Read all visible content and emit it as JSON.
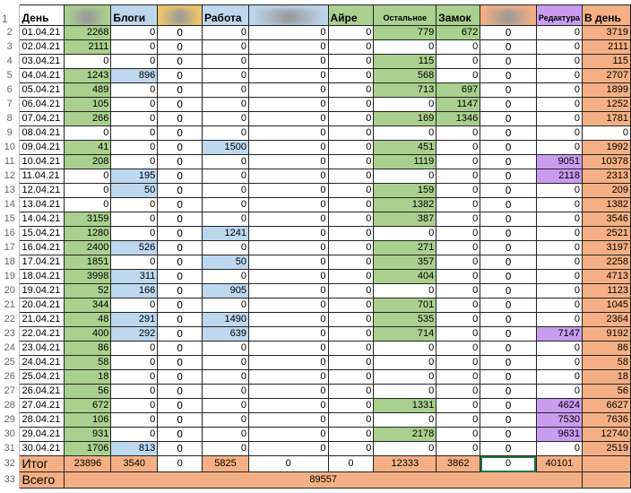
{
  "headers": [
    "День",
    "",
    "Блоги",
    "",
    "Работа",
    "",
    "Айре",
    "Остальное",
    "Замок",
    "",
    "Редактура",
    "В день"
  ],
  "header_colors": [
    "",
    "#a9d08e",
    "#bdd7ee",
    "#eec56a",
    "#bdd7ee",
    "#bdd7ee",
    "#a9d08e",
    "#a9d08e",
    "#a9d08e",
    "#f4b084",
    "#c99cf0",
    "#f4b084"
  ],
  "rows": [
    [
      "01.04.21",
      2268,
      0,
      0,
      0,
      0,
      0,
      779,
      672,
      0,
      0,
      3719
    ],
    [
      "02.04.21",
      2111,
      0,
      0,
      0,
      0,
      0,
      0,
      0,
      0,
      0,
      2111
    ],
    [
      "03.04.21",
      0,
      0,
      0,
      0,
      0,
      0,
      115,
      0,
      0,
      0,
      115
    ],
    [
      "04.04.21",
      1243,
      896,
      0,
      0,
      0,
      0,
      568,
      0,
      0,
      0,
      2707
    ],
    [
      "05.04.21",
      489,
      0,
      0,
      0,
      0,
      0,
      713,
      697,
      0,
      0,
      1899
    ],
    [
      "06.04.21",
      105,
      0,
      0,
      0,
      0,
      0,
      0,
      1147,
      0,
      0,
      1252
    ],
    [
      "07.04.21",
      266,
      0,
      0,
      0,
      0,
      0,
      169,
      1346,
      0,
      0,
      1781
    ],
    [
      "08.04.21",
      0,
      0,
      0,
      0,
      0,
      0,
      0,
      0,
      0,
      0,
      0
    ],
    [
      "09.04.21",
      41,
      0,
      0,
      1500,
      0,
      0,
      451,
      0,
      0,
      0,
      1992
    ],
    [
      "10.04.21",
      208,
      0,
      0,
      0,
      0,
      0,
      1119,
      0,
      0,
      9051,
      10378
    ],
    [
      "11.04.21",
      0,
      195,
      0,
      0,
      0,
      0,
      0,
      0,
      0,
      2118,
      2313
    ],
    [
      "12.04.21",
      0,
      50,
      0,
      0,
      0,
      0,
      159,
      0,
      0,
      0,
      209
    ],
    [
      "13.04.21",
      0,
      0,
      0,
      0,
      0,
      0,
      1382,
      0,
      0,
      0,
      1382
    ],
    [
      "14.04.21",
      3159,
      0,
      0,
      0,
      0,
      0,
      387,
      0,
      0,
      0,
      3546
    ],
    [
      "15.04.21",
      1280,
      0,
      0,
      1241,
      0,
      0,
      0,
      0,
      0,
      0,
      2521
    ],
    [
      "16.04.21",
      2400,
      526,
      0,
      0,
      0,
      0,
      271,
      0,
      0,
      0,
      3197
    ],
    [
      "17.04.21",
      1851,
      0,
      0,
      50,
      0,
      0,
      357,
      0,
      0,
      0,
      2258
    ],
    [
      "18.04.21",
      3998,
      311,
      0,
      0,
      0,
      0,
      404,
      0,
      0,
      0,
      4713
    ],
    [
      "19.04.21",
      52,
      166,
      0,
      905,
      0,
      0,
      0,
      0,
      0,
      0,
      1123
    ],
    [
      "20.04.21",
      344,
      0,
      0,
      0,
      0,
      0,
      701,
      0,
      0,
      0,
      1045
    ],
    [
      "21.04.21",
      48,
      291,
      0,
      1490,
      0,
      0,
      535,
      0,
      0,
      0,
      2364
    ],
    [
      "22.04.21",
      400,
      292,
      0,
      639,
      0,
      0,
      714,
      0,
      0,
      7147,
      9192
    ],
    [
      "23.04.21",
      86,
      0,
      0,
      0,
      0,
      0,
      0,
      0,
      0,
      0,
      86
    ],
    [
      "24.04.21",
      58,
      0,
      0,
      0,
      0,
      0,
      0,
      0,
      0,
      0,
      58
    ],
    [
      "25.04.21",
      18,
      0,
      0,
      0,
      0,
      0,
      0,
      0,
      0,
      0,
      18
    ],
    [
      "26.04.21",
      56,
      0,
      0,
      0,
      0,
      0,
      0,
      0,
      0,
      0,
      56
    ],
    [
      "27.04.21",
      672,
      0,
      0,
      0,
      0,
      0,
      1331,
      0,
      0,
      4624,
      6627
    ],
    [
      "28.04.21",
      106,
      0,
      0,
      0,
      0,
      0,
      0,
      0,
      0,
      7530,
      7636
    ],
    [
      "29.04.21",
      931,
      0,
      0,
      0,
      0,
      0,
      2178,
      0,
      0,
      9631,
      12740
    ],
    [
      "30.04.21",
      1706,
      813,
      0,
      0,
      0,
      0,
      0,
      0,
      0,
      0,
      2519
    ]
  ],
  "totals": {
    "label": "Итог",
    "values": [
      23896,
      3540,
      0,
      5825,
      0,
      0,
      12333,
      3862,
      0,
      40101
    ]
  },
  "grand": {
    "label": "Всего",
    "value": "89557"
  },
  "colors": {
    "green": "#a9d08e",
    "blue": "#bdd7ee",
    "orange": "#f4b084",
    "purple": "#c99cf0"
  }
}
